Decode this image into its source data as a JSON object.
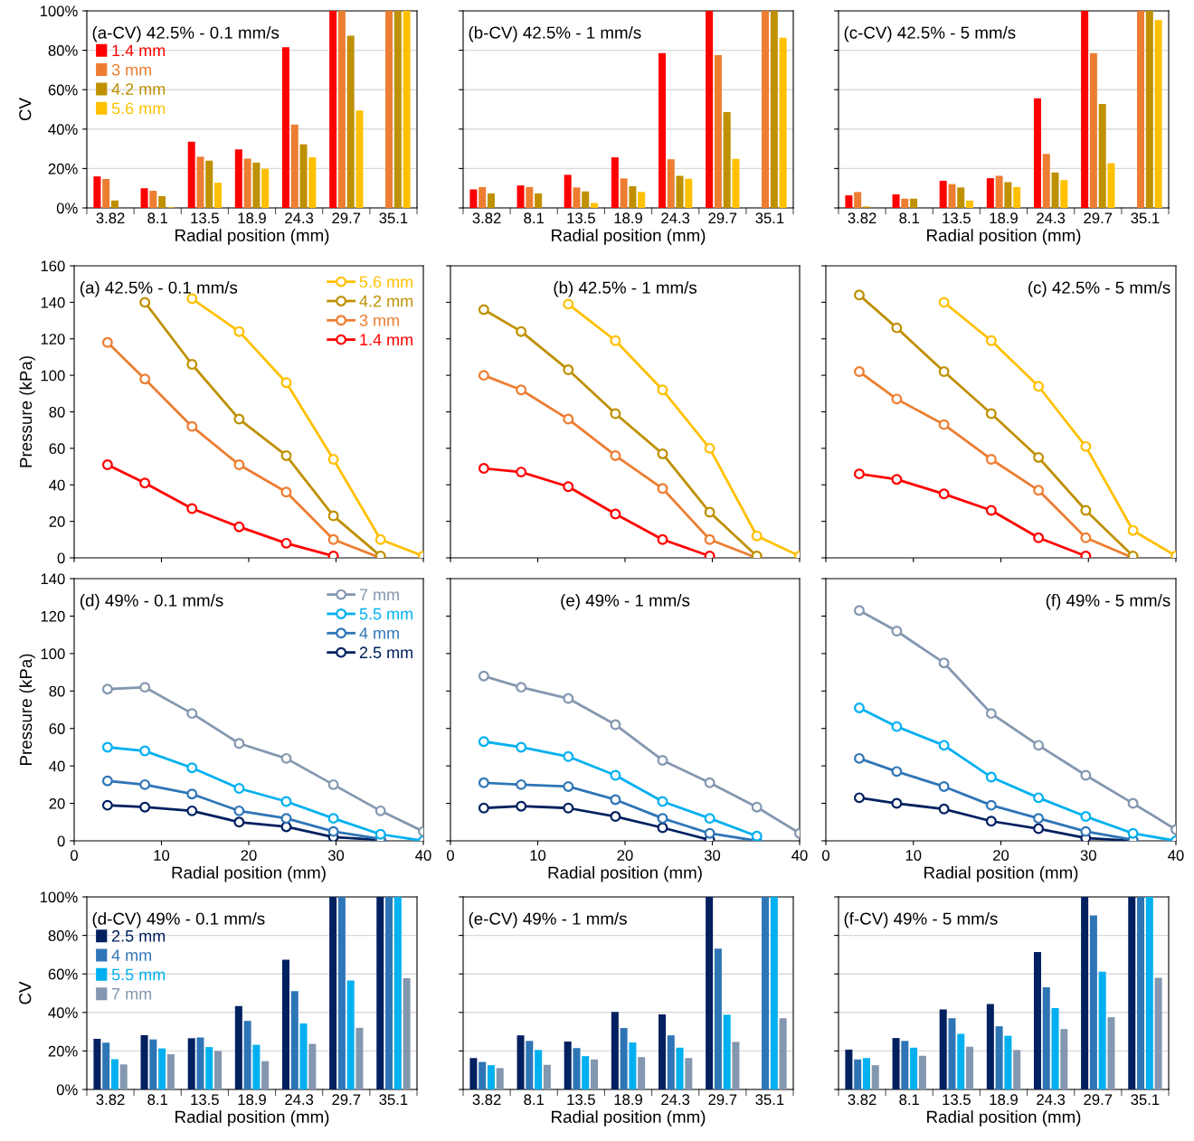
{
  "chart_data": [
    {
      "type": "bar",
      "title": "(a-CV) 42.5% - 0.1 mm/s",
      "xlabel": "Radial position (mm)",
      "ylabel": "CV",
      "categories": [
        "3.82",
        "8.1",
        "13.5",
        "18.9",
        "24.3",
        "29.7",
        "35.1"
      ],
      "ylim": [
        0,
        100
      ],
      "yticks": [
        {
          "value": 0,
          "label": "0%"
        },
        {
          "value": 20,
          "label": "20%"
        },
        {
          "value": 40,
          "label": "40%"
        },
        {
          "value": 60,
          "label": "60%"
        },
        {
          "value": 80,
          "label": "80%"
        },
        {
          "value": 100,
          "label": "100%"
        }
      ],
      "grid": "y",
      "legend": "top left",
      "series": [
        {
          "name": "1.4 mm",
          "color": "#ff0000",
          "values": [
            16,
            10,
            33.6,
            29.7,
            81.5,
            100,
            null
          ]
        },
        {
          "name": "3 mm",
          "color": "#ed7d31",
          "values": [
            14.7,
            8.7,
            26,
            25,
            42.3,
            100,
            100
          ]
        },
        {
          "name": "4.2 mm",
          "color": "#bf9000",
          "values": [
            3.8,
            6,
            24,
            23,
            32.3,
            87.4,
            100
          ]
        },
        {
          "name": "5.6 mm",
          "color": "#ffc000",
          "values": [
            null,
            0.3,
            12.8,
            19.9,
            25.7,
            49.4,
            100
          ]
        }
      ]
    },
    {
      "type": "bar",
      "title": "(b-CV) 42.5% - 1 mm/s",
      "xlabel": "Radial position (mm)",
      "categories": [
        "3.82",
        "8.1",
        "13.5",
        "18.9",
        "24.3",
        "29.7",
        "35.1"
      ],
      "ylim": [
        0,
        100
      ],
      "yticks": [
        {
          "value": 0,
          "label": null
        },
        {
          "value": 20,
          "label": null
        },
        {
          "value": 40,
          "label": null
        },
        {
          "value": 60,
          "label": null
        },
        {
          "value": 80,
          "label": null
        },
        {
          "value": 100,
          "label": null
        }
      ],
      "grid": "y",
      "tick_labels": "x",
      "series": [
        {
          "color": "#ff0000",
          "values": [
            9.4,
            11.4,
            16.8,
            25.7,
            78.5,
            100,
            null
          ]
        },
        {
          "color": "#ed7d31",
          "values": [
            10.6,
            10.6,
            10.4,
            15,
            24.7,
            77.5,
            100
          ]
        },
        {
          "color": "#bf9000",
          "values": [
            7.4,
            7.4,
            8.4,
            11,
            16.3,
            48.6,
            100
          ]
        },
        {
          "color": "#ffc000",
          "values": [
            null,
            null,
            2.5,
            8.1,
            14.8,
            24.9,
            86.4
          ]
        }
      ]
    },
    {
      "type": "bar",
      "title": "(c-CV) 42.5% - 5 mm/s",
      "xlabel": "Radial position (mm)",
      "categories": [
        "3.82",
        "8.1",
        "13.5",
        "18.9",
        "24.3",
        "29.7",
        "35.1"
      ],
      "ylim": [
        0,
        100
      ],
      "yticks": [
        {
          "value": 0,
          "label": null
        },
        {
          "value": 20,
          "label": null
        },
        {
          "value": 40,
          "label": null
        },
        {
          "value": 60,
          "label": null
        },
        {
          "value": 80,
          "label": null
        },
        {
          "value": 100,
          "label": null
        }
      ],
      "grid": "y",
      "tick_labels": "x",
      "series": [
        {
          "color": "#ff0000",
          "values": [
            6.4,
            6.9,
            13.8,
            15.1,
            55.6,
            100,
            null
          ]
        },
        {
          "color": "#ed7d31",
          "values": [
            8.1,
            4.7,
            12.1,
            16.3,
            27.4,
            78.5,
            100
          ]
        },
        {
          "color": "#bf9000",
          "values": [
            0.7,
            4.7,
            10.4,
            13.1,
            18,
            52.8,
            100
          ]
        },
        {
          "color": "#ffc000",
          "values": [
            null,
            null,
            3.7,
            10.6,
            14.1,
            22.7,
            95.3
          ]
        }
      ]
    },
    {
      "type": "line",
      "title": "(a) 42.5% - 0.1 mm/s",
      "ylabel": "Pressure (kPa)",
      "x": [
        3.82,
        8.1,
        13.5,
        18.9,
        24.3,
        29.7,
        35.1,
        40
      ],
      "xlim": [
        0,
        40
      ],
      "xticks": [
        0,
        10,
        20,
        30,
        40
      ],
      "ylim": [
        0,
        160
      ],
      "yticks": [
        0,
        20,
        40,
        60,
        80,
        100,
        120,
        140,
        160
      ],
      "tick_labels": "y",
      "marker": "circle",
      "legend": "top right",
      "series": [
        {
          "name": "1.4 mm",
          "color": "#ff0000",
          "values": [
            51,
            41,
            27,
            17,
            8,
            1,
            null,
            null
          ]
        },
        {
          "name": "3 mm",
          "color": "#ed7d31",
          "values": [
            118,
            98,
            72,
            51,
            36,
            10,
            0,
            null
          ]
        },
        {
          "name": "4.2 mm",
          "color": "#bf9000",
          "values": [
            null,
            140,
            106,
            76,
            56,
            23,
            1,
            null
          ]
        },
        {
          "name": "5.6 mm",
          "color": "#ffc000",
          "values": [
            null,
            null,
            142,
            124,
            96,
            54,
            10,
            1
          ]
        }
      ]
    },
    {
      "type": "line",
      "title": "(b) 42.5% - 1 mm/s",
      "x": [
        3.82,
        8.1,
        13.5,
        18.9,
        24.3,
        29.7,
        35.1,
        40
      ],
      "xlim": [
        0,
        40
      ],
      "xticks": [
        0,
        10,
        20,
        30,
        40
      ],
      "ylim": [
        0,
        160
      ],
      "yticks": [
        0,
        20,
        40,
        60,
        80,
        100,
        120,
        140,
        160
      ],
      "tick_labels": false,
      "marker": "circle",
      "series": [
        {
          "color": "#ff0000",
          "values": [
            49,
            47,
            39,
            24,
            10,
            1,
            null,
            null
          ]
        },
        {
          "color": "#ed7d31",
          "values": [
            100,
            92,
            76,
            56,
            38,
            10,
            0,
            null
          ]
        },
        {
          "color": "#bf9000",
          "values": [
            136,
            124,
            103,
            79,
            57,
            25,
            1,
            null
          ]
        },
        {
          "color": "#ffc000",
          "values": [
            null,
            null,
            139,
            119,
            92,
            60,
            12,
            1
          ]
        }
      ]
    },
    {
      "type": "line",
      "title": "(c) 42.5% - 5 mm/s",
      "x": [
        3.82,
        8.1,
        13.5,
        18.9,
        24.3,
        29.7,
        35.1,
        40
      ],
      "xlim": [
        0,
        40
      ],
      "xticks": [
        0,
        10,
        20,
        30,
        40
      ],
      "ylim": [
        0,
        160
      ],
      "yticks": [
        0,
        20,
        40,
        60,
        80,
        100,
        120,
        140,
        160
      ],
      "tick_labels": false,
      "marker": "circle",
      "series": [
        {
          "color": "#ff0000",
          "values": [
            46,
            43,
            35,
            26,
            11,
            1,
            null,
            null
          ]
        },
        {
          "color": "#ed7d31",
          "values": [
            102,
            87,
            73,
            54,
            37,
            11,
            0,
            null
          ]
        },
        {
          "color": "#bf9000",
          "values": [
            144,
            126,
            102,
            79,
            55,
            26,
            1,
            null
          ]
        },
        {
          "color": "#ffc000",
          "values": [
            null,
            null,
            140,
            119,
            94,
            61,
            15,
            1
          ]
        }
      ]
    },
    {
      "type": "line",
      "title": "(d) 49% - 0.1 mm/s",
      "xlabel": "Radial position (mm)",
      "ylabel": "Pressure (kPa)",
      "x": [
        3.82,
        8.1,
        13.5,
        18.9,
        24.3,
        29.7,
        35.1,
        40
      ],
      "xlim": [
        0,
        40
      ],
      "xticks": [
        0,
        10,
        20,
        30,
        40
      ],
      "ylim": [
        0,
        140
      ],
      "yticks": [
        0,
        20,
        40,
        60,
        80,
        100,
        120,
        140
      ],
      "marker": "circle",
      "legend": "top right",
      "series": [
        {
          "name": "2.5 mm",
          "color": "#002060",
          "values": [
            19,
            18,
            16,
            10,
            7.5,
            2,
            0.5,
            null
          ]
        },
        {
          "name": "4 mm",
          "color": "#2e75b6",
          "values": [
            32,
            30,
            25,
            16,
            12,
            5,
            1,
            null
          ]
        },
        {
          "name": "5.5 mm",
          "color": "#00b0f0",
          "values": [
            50,
            48,
            39,
            28,
            21,
            12,
            3.5,
            0
          ]
        },
        {
          "name": "7 mm",
          "color": "#8497b0",
          "values": [
            81,
            82,
            68,
            52,
            44,
            30,
            16,
            5
          ]
        }
      ]
    },
    {
      "type": "line",
      "title": "(e) 49% - 1 mm/s",
      "xlabel": "Radial position (mm)",
      "x": [
        3.82,
        8.1,
        13.5,
        18.9,
        24.3,
        29.7,
        35.1,
        40
      ],
      "xlim": [
        0,
        40
      ],
      "xticks": [
        0,
        10,
        20,
        30,
        40
      ],
      "ylim": [
        0,
        140
      ],
      "yticks": [
        0,
        20,
        40,
        60,
        80,
        100,
        120,
        140
      ],
      "tick_labels": "x",
      "marker": "circle",
      "series": [
        {
          "color": "#002060",
          "values": [
            17.5,
            18.5,
            17.5,
            13,
            7,
            0.5,
            null,
            null
          ]
        },
        {
          "color": "#2e75b6",
          "values": [
            31,
            30,
            29,
            22,
            12,
            4,
            0,
            null
          ]
        },
        {
          "color": "#00b0f0",
          "values": [
            53,
            50,
            45,
            35,
            21,
            12,
            2.5,
            null
          ]
        },
        {
          "color": "#8497b0",
          "values": [
            88,
            82,
            76,
            62,
            43,
            31,
            18,
            4
          ]
        }
      ]
    },
    {
      "type": "line",
      "title": "(f) 49% - 5 mm/s",
      "xlabel": "Radial position (mm)",
      "x": [
        3.82,
        8.1,
        13.5,
        18.9,
        24.3,
        29.7,
        35.1,
        40
      ],
      "xlim": [
        0,
        40
      ],
      "xticks": [
        0,
        10,
        20,
        30,
        40
      ],
      "ylim": [
        0,
        140
      ],
      "yticks": [
        0,
        20,
        40,
        60,
        80,
        100,
        120,
        140
      ],
      "tick_labels": "x",
      "marker": "circle",
      "series": [
        {
          "color": "#002060",
          "values": [
            23,
            20,
            17,
            10.5,
            6.5,
            1.5,
            0,
            null
          ]
        },
        {
          "color": "#2e75b6",
          "values": [
            44,
            37,
            29,
            19,
            12,
            5,
            0.5,
            null
          ]
        },
        {
          "color": "#00b0f0",
          "values": [
            71,
            61,
            51,
            34,
            23,
            13,
            4,
            0
          ]
        },
        {
          "color": "#8497b0",
          "values": [
            123,
            112,
            95,
            68,
            51,
            35,
            20,
            6
          ]
        }
      ]
    },
    {
      "type": "bar",
      "title": "(d-CV) 49% - 0.1 mm/s",
      "xlabel": "Radial position (mm)",
      "ylabel": "CV",
      "categories": [
        "3.82",
        "8.1",
        "13.5",
        "18.9",
        "24.3",
        "29.7",
        "35.1"
      ],
      "ylim": [
        0,
        100
      ],
      "yticks": [
        {
          "value": 0,
          "label": "0%"
        },
        {
          "value": 20,
          "label": "20%"
        },
        {
          "value": 40,
          "label": "40%"
        },
        {
          "value": 60,
          "label": "60%"
        },
        {
          "value": 80,
          "label": "80%"
        },
        {
          "value": 100,
          "label": "100%"
        }
      ],
      "grid": "y",
      "legend": "top left",
      "series": [
        {
          "name": "2.5 mm",
          "color": "#002060",
          "values": [
            26.3,
            28.2,
            26.6,
            43.3,
            67.4,
            100,
            100
          ]
        },
        {
          "name": "4 mm",
          "color": "#2e75b6",
          "values": [
            24.3,
            26,
            27,
            35.6,
            51.1,
            100,
            100
          ]
        },
        {
          "name": "5.5 mm",
          "color": "#00b0f0",
          "values": [
            15.7,
            21.3,
            22,
            23.2,
            34.3,
            56.6,
            100
          ]
        },
        {
          "name": "7 mm",
          "color": "#8497b0",
          "values": [
            13,
            18.3,
            20,
            14.7,
            23.7,
            32,
            57.8
          ]
        }
      ]
    },
    {
      "type": "bar",
      "title": "(e-CV) 49% - 1 mm/s",
      "xlabel": "Radial position (mm)",
      "categories": [
        "3.82",
        "8.1",
        "13.5",
        "18.9",
        "24.3",
        "29.7",
        "35.1"
      ],
      "ylim": [
        0,
        100
      ],
      "yticks": [
        {
          "value": 0,
          "label": null
        },
        {
          "value": 20,
          "label": null
        },
        {
          "value": 40,
          "label": null
        },
        {
          "value": 60,
          "label": null
        },
        {
          "value": 80,
          "label": null
        },
        {
          "value": 100,
          "label": null
        }
      ],
      "grid": "y",
      "tick_labels": "x",
      "series": [
        {
          "color": "#002060",
          "values": [
            16.3,
            28.1,
            24.9,
            40.2,
            39,
            100,
            null
          ]
        },
        {
          "color": "#2e75b6",
          "values": [
            14.3,
            25.2,
            21.5,
            31.9,
            28.1,
            73.1,
            100
          ]
        },
        {
          "color": "#00b0f0",
          "values": [
            12.6,
            20.5,
            17.3,
            24.4,
            21.7,
            38.8,
            100
          ]
        },
        {
          "color": "#8497b0",
          "values": [
            11.1,
            12.8,
            15.6,
            16.8,
            16.3,
            24.7,
            37
          ]
        }
      ]
    },
    {
      "type": "bar",
      "title": "(f-CV) 49% - 5 mm/s",
      "xlabel": "Radial position (mm)",
      "categories": [
        "3.82",
        "8.1",
        "13.5",
        "18.9",
        "24.3",
        "29.7",
        "35.1"
      ],
      "ylim": [
        0,
        100
      ],
      "yticks": [
        {
          "value": 0,
          "label": null
        },
        {
          "value": 20,
          "label": null
        },
        {
          "value": 40,
          "label": null
        },
        {
          "value": 60,
          "label": null
        },
        {
          "value": 80,
          "label": null
        },
        {
          "value": 100,
          "label": null
        }
      ],
      "grid": "y",
      "tick_labels": "x",
      "series": [
        {
          "color": "#002060",
          "values": [
            20.7,
            26.7,
            41.5,
            44.4,
            71.4,
            100,
            100
          ]
        },
        {
          "color": "#2e75b6",
          "values": [
            15.6,
            25.2,
            37,
            32.8,
            53.1,
            90.4,
            100
          ]
        },
        {
          "color": "#00b0f0",
          "values": [
            16.3,
            21.7,
            28.9,
            27.9,
            42.2,
            61.2,
            100
          ]
        },
        {
          "color": "#8497b0",
          "values": [
            12.6,
            17.5,
            22.2,
            20.5,
            31.4,
            37.5,
            58
          ]
        }
      ]
    }
  ]
}
